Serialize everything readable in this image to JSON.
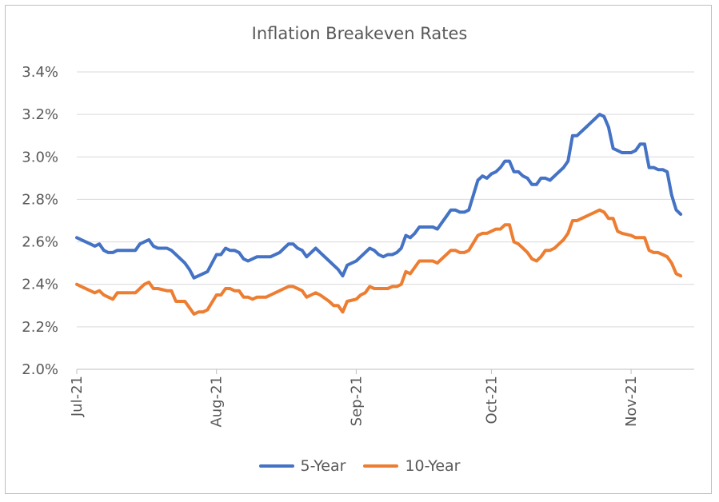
{
  "chart_data": {
    "type": "line",
    "title": "Inflation Breakeven Rates",
    "xlabel": "",
    "ylabel": "",
    "ylim": [
      2.0,
      3.4
    ],
    "yticks": [
      "2.0%",
      "2.2%",
      "2.4%",
      "2.6%",
      "2.8%",
      "3.0%",
      "3.2%",
      "3.4%"
    ],
    "ytick_values": [
      2.0,
      2.2,
      2.4,
      2.6,
      2.8,
      3.0,
      3.2,
      3.4
    ],
    "xticks": [
      "Jul-21",
      "Aug-21",
      "Sep-21",
      "Oct-21",
      "Nov-21"
    ],
    "xtick_dates": [
      "2021-07-01",
      "2021-08-01",
      "2021-09-01",
      "2021-10-01",
      "2021-11-01"
    ],
    "xlim": [
      "2021-07-01",
      "2021-11-15"
    ],
    "grid": "horizontal",
    "legend_position": "bottom",
    "series": [
      {
        "name": "5-Year",
        "color": "#4472C4",
        "points": [
          [
            "2021-07-01",
            2.62
          ],
          [
            "2021-07-02",
            2.61
          ],
          [
            "2021-07-04",
            2.59
          ],
          [
            "2021-07-05",
            2.58
          ],
          [
            "2021-07-06",
            2.59
          ],
          [
            "2021-07-07",
            2.56
          ],
          [
            "2021-07-08",
            2.55
          ],
          [
            "2021-07-09",
            2.55
          ],
          [
            "2021-07-10",
            2.56
          ],
          [
            "2021-07-12",
            2.56
          ],
          [
            "2021-07-14",
            2.56
          ],
          [
            "2021-07-15",
            2.59
          ],
          [
            "2021-07-16",
            2.6
          ],
          [
            "2021-07-17",
            2.61
          ],
          [
            "2021-07-18",
            2.58
          ],
          [
            "2021-07-19",
            2.57
          ],
          [
            "2021-07-21",
            2.57
          ],
          [
            "2021-07-22",
            2.56
          ],
          [
            "2021-07-23",
            2.54
          ],
          [
            "2021-07-25",
            2.5
          ],
          [
            "2021-07-26",
            2.47
          ],
          [
            "2021-07-27",
            2.43
          ],
          [
            "2021-07-28",
            2.44
          ],
          [
            "2021-07-29",
            2.45
          ],
          [
            "2021-07-30",
            2.46
          ],
          [
            "2021-08-01",
            2.54
          ],
          [
            "2021-08-02",
            2.54
          ],
          [
            "2021-08-03",
            2.57
          ],
          [
            "2021-08-04",
            2.56
          ],
          [
            "2021-08-05",
            2.56
          ],
          [
            "2021-08-06",
            2.55
          ],
          [
            "2021-08-07",
            2.52
          ],
          [
            "2021-08-08",
            2.51
          ],
          [
            "2021-08-09",
            2.52
          ],
          [
            "2021-08-10",
            2.53
          ],
          [
            "2021-08-12",
            2.53
          ],
          [
            "2021-08-13",
            2.53
          ],
          [
            "2021-08-15",
            2.55
          ],
          [
            "2021-08-16",
            2.57
          ],
          [
            "2021-08-17",
            2.59
          ],
          [
            "2021-08-18",
            2.59
          ],
          [
            "2021-08-19",
            2.57
          ],
          [
            "2021-08-20",
            2.56
          ],
          [
            "2021-08-21",
            2.53
          ],
          [
            "2021-08-22",
            2.55
          ],
          [
            "2021-08-23",
            2.57
          ],
          [
            "2021-08-24",
            2.55
          ],
          [
            "2021-08-26",
            2.51
          ],
          [
            "2021-08-27",
            2.49
          ],
          [
            "2021-08-28",
            2.47
          ],
          [
            "2021-08-29",
            2.44
          ],
          [
            "2021-08-30",
            2.49
          ],
          [
            "2021-09-01",
            2.51
          ],
          [
            "2021-09-02",
            2.53
          ],
          [
            "2021-09-03",
            2.55
          ],
          [
            "2021-09-04",
            2.57
          ],
          [
            "2021-09-05",
            2.56
          ],
          [
            "2021-09-06",
            2.54
          ],
          [
            "2021-09-07",
            2.53
          ],
          [
            "2021-09-08",
            2.54
          ],
          [
            "2021-09-09",
            2.54
          ],
          [
            "2021-09-10",
            2.55
          ],
          [
            "2021-09-11",
            2.57
          ],
          [
            "2021-09-12",
            2.63
          ],
          [
            "2021-09-13",
            2.62
          ],
          [
            "2021-09-14",
            2.64
          ],
          [
            "2021-09-15",
            2.67
          ],
          [
            "2021-09-16",
            2.67
          ],
          [
            "2021-09-17",
            2.67
          ],
          [
            "2021-09-18",
            2.67
          ],
          [
            "2021-09-19",
            2.66
          ],
          [
            "2021-09-20",
            2.69
          ],
          [
            "2021-09-21",
            2.72
          ],
          [
            "2021-09-22",
            2.75
          ],
          [
            "2021-09-23",
            2.75
          ],
          [
            "2021-09-24",
            2.74
          ],
          [
            "2021-09-25",
            2.74
          ],
          [
            "2021-09-26",
            2.75
          ],
          [
            "2021-09-28",
            2.89
          ],
          [
            "2021-09-29",
            2.91
          ],
          [
            "2021-09-30",
            2.9
          ],
          [
            "2021-10-01",
            2.92
          ],
          [
            "2021-10-02",
            2.93
          ],
          [
            "2021-10-03",
            2.95
          ],
          [
            "2021-10-04",
            2.98
          ],
          [
            "2021-10-05",
            2.98
          ],
          [
            "2021-10-06",
            2.93
          ],
          [
            "2021-10-07",
            2.93
          ],
          [
            "2021-10-08",
            2.91
          ],
          [
            "2021-10-09",
            2.9
          ],
          [
            "2021-10-10",
            2.87
          ],
          [
            "2021-10-11",
            2.87
          ],
          [
            "2021-10-12",
            2.9
          ],
          [
            "2021-10-13",
            2.9
          ],
          [
            "2021-10-14",
            2.89
          ],
          [
            "2021-10-15",
            2.91
          ],
          [
            "2021-10-16",
            2.93
          ],
          [
            "2021-10-17",
            2.95
          ],
          [
            "2021-10-18",
            2.98
          ],
          [
            "2021-10-19",
            3.1
          ],
          [
            "2021-10-20",
            3.1
          ],
          [
            "2021-10-21",
            3.12
          ],
          [
            "2021-10-22",
            3.14
          ],
          [
            "2021-10-23",
            3.16
          ],
          [
            "2021-10-24",
            3.18
          ],
          [
            "2021-10-25",
            3.2
          ],
          [
            "2021-10-26",
            3.19
          ],
          [
            "2021-10-27",
            3.14
          ],
          [
            "2021-10-28",
            3.04
          ],
          [
            "2021-10-29",
            3.03
          ],
          [
            "2021-10-30",
            3.02
          ],
          [
            "2021-11-01",
            3.02
          ],
          [
            "2021-11-02",
            3.03
          ],
          [
            "2021-11-03",
            3.06
          ],
          [
            "2021-11-04",
            3.06
          ],
          [
            "2021-11-05",
            2.95
          ],
          [
            "2021-11-06",
            2.95
          ],
          [
            "2021-11-07",
            2.94
          ],
          [
            "2021-11-08",
            2.94
          ],
          [
            "2021-11-09",
            2.93
          ],
          [
            "2021-11-10",
            2.82
          ],
          [
            "2021-11-11",
            2.75
          ],
          [
            "2021-11-12",
            2.73
          ]
        ]
      },
      {
        "name": "10-Year",
        "color": "#ED7D31",
        "points": [
          [
            "2021-07-01",
            2.4
          ],
          [
            "2021-07-02",
            2.39
          ],
          [
            "2021-07-04",
            2.37
          ],
          [
            "2021-07-05",
            2.36
          ],
          [
            "2021-07-06",
            2.37
          ],
          [
            "2021-07-07",
            2.35
          ],
          [
            "2021-07-08",
            2.34
          ],
          [
            "2021-07-09",
            2.33
          ],
          [
            "2021-07-10",
            2.36
          ],
          [
            "2021-07-12",
            2.36
          ],
          [
            "2021-07-14",
            2.36
          ],
          [
            "2021-07-15",
            2.38
          ],
          [
            "2021-07-16",
            2.4
          ],
          [
            "2021-07-17",
            2.41
          ],
          [
            "2021-07-18",
            2.38
          ],
          [
            "2021-07-19",
            2.38
          ],
          [
            "2021-07-21",
            2.37
          ],
          [
            "2021-07-22",
            2.37
          ],
          [
            "2021-07-23",
            2.32
          ],
          [
            "2021-07-25",
            2.32
          ],
          [
            "2021-07-26",
            2.29
          ],
          [
            "2021-07-27",
            2.26
          ],
          [
            "2021-07-28",
            2.27
          ],
          [
            "2021-07-29",
            2.27
          ],
          [
            "2021-07-30",
            2.28
          ],
          [
            "2021-08-01",
            2.35
          ],
          [
            "2021-08-02",
            2.35
          ],
          [
            "2021-08-03",
            2.38
          ],
          [
            "2021-08-04",
            2.38
          ],
          [
            "2021-08-05",
            2.37
          ],
          [
            "2021-08-06",
            2.37
          ],
          [
            "2021-08-07",
            2.34
          ],
          [
            "2021-08-08",
            2.34
          ],
          [
            "2021-08-09",
            2.33
          ],
          [
            "2021-08-10",
            2.34
          ],
          [
            "2021-08-12",
            2.34
          ],
          [
            "2021-08-13",
            2.35
          ],
          [
            "2021-08-15",
            2.37
          ],
          [
            "2021-08-16",
            2.38
          ],
          [
            "2021-08-17",
            2.39
          ],
          [
            "2021-08-18",
            2.39
          ],
          [
            "2021-08-19",
            2.38
          ],
          [
            "2021-08-20",
            2.37
          ],
          [
            "2021-08-21",
            2.34
          ],
          [
            "2021-08-22",
            2.35
          ],
          [
            "2021-08-23",
            2.36
          ],
          [
            "2021-08-24",
            2.35
          ],
          [
            "2021-08-26",
            2.32
          ],
          [
            "2021-08-27",
            2.3
          ],
          [
            "2021-08-28",
            2.3
          ],
          [
            "2021-08-29",
            2.27
          ],
          [
            "2021-08-30",
            2.32
          ],
          [
            "2021-09-01",
            2.33
          ],
          [
            "2021-09-02",
            2.35
          ],
          [
            "2021-09-03",
            2.36
          ],
          [
            "2021-09-04",
            2.39
          ],
          [
            "2021-09-05",
            2.38
          ],
          [
            "2021-09-06",
            2.38
          ],
          [
            "2021-09-07",
            2.38
          ],
          [
            "2021-09-08",
            2.38
          ],
          [
            "2021-09-09",
            2.39
          ],
          [
            "2021-09-10",
            2.39
          ],
          [
            "2021-09-11",
            2.4
          ],
          [
            "2021-09-12",
            2.46
          ],
          [
            "2021-09-13",
            2.45
          ],
          [
            "2021-09-14",
            2.48
          ],
          [
            "2021-09-15",
            2.51
          ],
          [
            "2021-09-16",
            2.51
          ],
          [
            "2021-09-17",
            2.51
          ],
          [
            "2021-09-18",
            2.51
          ],
          [
            "2021-09-19",
            2.5
          ],
          [
            "2021-09-20",
            2.52
          ],
          [
            "2021-09-21",
            2.54
          ],
          [
            "2021-09-22",
            2.56
          ],
          [
            "2021-09-23",
            2.56
          ],
          [
            "2021-09-24",
            2.55
          ],
          [
            "2021-09-25",
            2.55
          ],
          [
            "2021-09-26",
            2.56
          ],
          [
            "2021-09-28",
            2.63
          ],
          [
            "2021-09-29",
            2.64
          ],
          [
            "2021-09-30",
            2.64
          ],
          [
            "2021-10-01",
            2.65
          ],
          [
            "2021-10-02",
            2.66
          ],
          [
            "2021-10-03",
            2.66
          ],
          [
            "2021-10-04",
            2.68
          ],
          [
            "2021-10-05",
            2.68
          ],
          [
            "2021-10-06",
            2.6
          ],
          [
            "2021-10-07",
            2.59
          ],
          [
            "2021-10-08",
            2.57
          ],
          [
            "2021-10-09",
            2.55
          ],
          [
            "2021-10-10",
            2.52
          ],
          [
            "2021-10-11",
            2.51
          ],
          [
            "2021-10-12",
            2.53
          ],
          [
            "2021-10-13",
            2.56
          ],
          [
            "2021-10-14",
            2.56
          ],
          [
            "2021-10-15",
            2.57
          ],
          [
            "2021-10-16",
            2.59
          ],
          [
            "2021-10-17",
            2.61
          ],
          [
            "2021-10-18",
            2.64
          ],
          [
            "2021-10-19",
            2.7
          ],
          [
            "2021-10-20",
            2.7
          ],
          [
            "2021-10-21",
            2.71
          ],
          [
            "2021-10-22",
            2.72
          ],
          [
            "2021-10-23",
            2.73
          ],
          [
            "2021-10-24",
            2.74
          ],
          [
            "2021-10-25",
            2.75
          ],
          [
            "2021-10-26",
            2.74
          ],
          [
            "2021-10-27",
            2.71
          ],
          [
            "2021-10-28",
            2.71
          ],
          [
            "2021-10-29",
            2.65
          ],
          [
            "2021-10-30",
            2.64
          ],
          [
            "2021-11-01",
            2.63
          ],
          [
            "2021-11-02",
            2.62
          ],
          [
            "2021-11-03",
            2.62
          ],
          [
            "2021-11-04",
            2.62
          ],
          [
            "2021-11-05",
            2.56
          ],
          [
            "2021-11-06",
            2.55
          ],
          [
            "2021-11-07",
            2.55
          ],
          [
            "2021-11-08",
            2.54
          ],
          [
            "2021-11-09",
            2.53
          ],
          [
            "2021-11-10",
            2.5
          ],
          [
            "2021-11-11",
            2.45
          ],
          [
            "2021-11-12",
            2.44
          ]
        ]
      }
    ]
  }
}
